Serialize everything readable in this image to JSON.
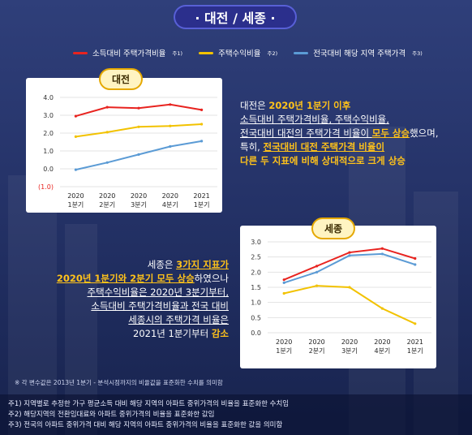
{
  "header": {
    "title": "· 대전 / 세종 ·"
  },
  "legend": [
    {
      "label": "소득대비 주택가격비율",
      "note": "주1)",
      "color": "#e8231f"
    },
    {
      "label": "주택수익비율",
      "note": "주2)",
      "color": "#f2c200"
    },
    {
      "label": "전국대비 해당 지역 주택가격",
      "note": "주3)",
      "color": "#5b9bd5"
    }
  ],
  "daejeon": {
    "tag": "대전",
    "text": [
      {
        "segs": [
          {
            "t": "대전은 "
          },
          {
            "t": "2020년 1분기 이후",
            "c": "hl"
          }
        ]
      },
      {
        "segs": [
          {
            "t": "소득대비 주택가격비율, 주택수익비율,",
            "c": "ul"
          }
        ]
      },
      {
        "segs": [
          {
            "t": "전국대비 대전의 주택가격 비율이 ",
            "c": "ul"
          },
          {
            "t": "모두 상승",
            "c": "hl ul"
          },
          {
            "t": "했으며,"
          }
        ]
      },
      {
        "segs": [
          {
            "t": "특히, "
          },
          {
            "t": "전국대비 대전 주택가격 비율이",
            "c": "hl ul"
          }
        ]
      },
      {
        "segs": [
          {
            "t": "다른 두 지표에 비해 상대적으로 크게 상승",
            "c": "hl"
          }
        ]
      }
    ]
  },
  "sejong": {
    "tag": "세종",
    "text": [
      {
        "segs": [
          {
            "t": "세종은 "
          },
          {
            "t": "3가지 지표가",
            "c": "hl ul"
          }
        ]
      },
      {
        "segs": [
          {
            "t": "2020년 1분기와 2분기 모두 상승",
            "c": "hl ul"
          },
          {
            "t": "하였으나"
          }
        ]
      },
      {
        "segs": [
          {
            "t": "주택수익비율은 2020년 3분기부터,",
            "c": "ul"
          }
        ]
      },
      {
        "segs": [
          {
            "t": "소득대비 주택가격비율과 전국 대비",
            "c": "ul"
          }
        ]
      },
      {
        "segs": [
          {
            "t": "세종시의 주택가격 비율은",
            "c": "ul"
          }
        ]
      },
      {
        "segs": [
          {
            "t": "2021년 1분기부터 "
          },
          {
            "t": "감소",
            "c": "hl"
          }
        ]
      }
    ]
  },
  "footnote_top": "※ 각 변수값은 2013년 1분기 - 분석시점까지의 비율값을 표준화한 수치를 의미함",
  "notes": [
    "주1) 지역별로 추정한 가구 평균소득 대비 해당 지역의 아파트 중위가격의 비율을 표준화한 수치임",
    "주2) 해당지역의 전환임대료와 아파트 중위가격의 비율을 표준화한 값임",
    "주3) 전국의 아파트 중위가격 대비 해당 지역의 아파트 중위가격의 비율을 표준화한 값을 의미함"
  ],
  "chart_data": [
    {
      "type": "line",
      "title": "대전",
      "x": [
        "2020 1분기",
        "2020 2분기",
        "2020 3분기",
        "2020 4분기",
        "2021 1분기"
      ],
      "x_lines": [
        [
          "2020",
          "1분기"
        ],
        [
          "2020",
          "2분기"
        ],
        [
          "2020",
          "3분기"
        ],
        [
          "2020",
          "4분기"
        ],
        [
          "2021",
          "1분기"
        ]
      ],
      "ylim": [
        -1.0,
        4.0
      ],
      "yticks": [
        4.0,
        3.0,
        2.0,
        1.0,
        0.0,
        -1.0
      ],
      "ytick_labels": [
        "4.0",
        "3.0",
        "2.0",
        "1.0",
        "0.0",
        "(1.0)"
      ],
      "grid": true,
      "series": [
        {
          "name": "소득대비 주택가격비율",
          "color": "#e8231f",
          "values": [
            2.95,
            3.45,
            3.4,
            3.6,
            3.3
          ]
        },
        {
          "name": "주택수익비율",
          "color": "#f2c200",
          "values": [
            1.8,
            2.05,
            2.35,
            2.4,
            2.5
          ]
        },
        {
          "name": "전국대비 해당 지역 주택가격",
          "color": "#5b9bd5",
          "values": [
            -0.05,
            0.35,
            0.8,
            1.25,
            1.55
          ]
        }
      ]
    },
    {
      "type": "line",
      "title": "세종",
      "x": [
        "2020 1분기",
        "2020 2분기",
        "2020 3분기",
        "2020 4분기",
        "2021 1분기"
      ],
      "x_lines": [
        [
          "2020",
          "1분기"
        ],
        [
          "2020",
          "2분기"
        ],
        [
          "2020",
          "3분기"
        ],
        [
          "2020",
          "4분기"
        ],
        [
          "2021",
          "1분기"
        ]
      ],
      "ylim": [
        0.0,
        3.0
      ],
      "yticks": [
        3.0,
        2.5,
        2.0,
        1.5,
        1.0,
        0.5,
        0.0
      ],
      "ytick_labels": [
        "3.0",
        "2.5",
        "2.0",
        "1.5",
        "1.0",
        "0.5",
        "0.0"
      ],
      "grid": true,
      "series": [
        {
          "name": "소득대비 주택가격비율",
          "color": "#e8231f",
          "values": [
            1.75,
            2.2,
            2.65,
            2.78,
            2.45
          ]
        },
        {
          "name": "주택수익비율",
          "color": "#f2c200",
          "values": [
            1.3,
            1.55,
            1.5,
            0.8,
            0.3
          ]
        },
        {
          "name": "전국대비 해당 지역 주택가격",
          "color": "#5b9bd5",
          "values": [
            1.65,
            2.0,
            2.55,
            2.6,
            2.25
          ]
        }
      ]
    }
  ]
}
